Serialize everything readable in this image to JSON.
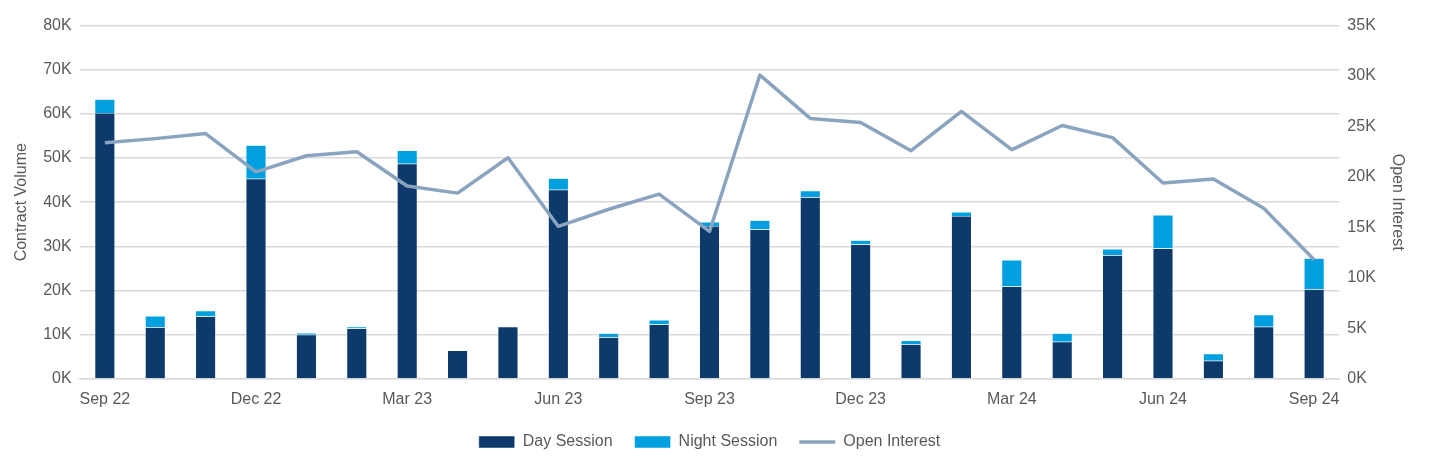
{
  "chart_data": {
    "type": "bar",
    "stacked": true,
    "ylabel": "Contract Volume",
    "y2label": "Open Interest",
    "categories": [
      "Sep 22",
      null,
      null,
      "Dec 22",
      null,
      null,
      "Mar 23",
      null,
      null,
      "Jun 23",
      null,
      null,
      "Sep 23",
      null,
      null,
      "Dec 23",
      null,
      null,
      "Mar 24",
      null,
      null,
      "Jun 24",
      null,
      null,
      "Sep 24"
    ],
    "series": [
      {
        "name": "Day Session",
        "color": "#0e3a6b",
        "values": [
          60.2,
          11.7,
          14.1,
          45.3,
          10.0,
          11.4,
          48.7,
          6.4,
          11.8,
          42.8,
          9.4,
          12.3,
          34.6,
          33.8,
          41.1,
          30.4,
          7.8,
          36.9,
          20.9,
          8.4,
          28.0,
          29.5,
          4.1,
          11.8,
          20.3
        ]
      },
      {
        "name": "Night Session",
        "color": "#009fdf",
        "values": [
          3.1,
          2.5,
          1.3,
          7.6,
          0.4,
          0.4,
          3.0,
          null,
          null,
          2.6,
          0.9,
          1.0,
          0.9,
          2.1,
          1.5,
          1.0,
          0.9,
          0.9,
          6.0,
          1.9,
          1.4,
          7.6,
          1.6,
          2.7,
          7.0
        ]
      },
      {
        "name": "Open Interest",
        "type": "line",
        "axis": "y2",
        "color": "#8aa4bf",
        "values": [
          23.4,
          23.8,
          24.3,
          20.5,
          22.1,
          22.5,
          19.1,
          18.4,
          21.9,
          15.1,
          16.8,
          18.3,
          14.6,
          30.1,
          25.8,
          25.4,
          22.6,
          26.5,
          22.7,
          25.1,
          23.9,
          19.4,
          19.8,
          16.9,
          11.8
        ]
      }
    ],
    "ylim": [
      0,
      80
    ],
    "yticks": [
      {
        "value": 0,
        "label": "0K"
      },
      {
        "value": 10,
        "label": "10K"
      },
      {
        "value": 20,
        "label": "20K"
      },
      {
        "value": 30,
        "label": "30K"
      },
      {
        "value": 40,
        "label": "40K"
      },
      {
        "value": 50,
        "label": "50K"
      },
      {
        "value": 60,
        "label": "60K"
      },
      {
        "value": 70,
        "label": "70K"
      },
      {
        "value": 80,
        "label": "80K"
      }
    ],
    "y2lim": [
      0,
      35
    ],
    "y2ticks": [
      {
        "value": 0,
        "label": "0K"
      },
      {
        "value": 5,
        "label": "5K"
      },
      {
        "value": 10,
        "label": "10K"
      },
      {
        "value": 15,
        "label": "15K"
      },
      {
        "value": 20,
        "label": "20K"
      },
      {
        "value": 25,
        "label": "25K"
      },
      {
        "value": 30,
        "label": "30K"
      },
      {
        "value": 35,
        "label": "35K"
      }
    ],
    "grid": "y",
    "legend": "bottom",
    "marker": "none",
    "line_style": "solid"
  }
}
